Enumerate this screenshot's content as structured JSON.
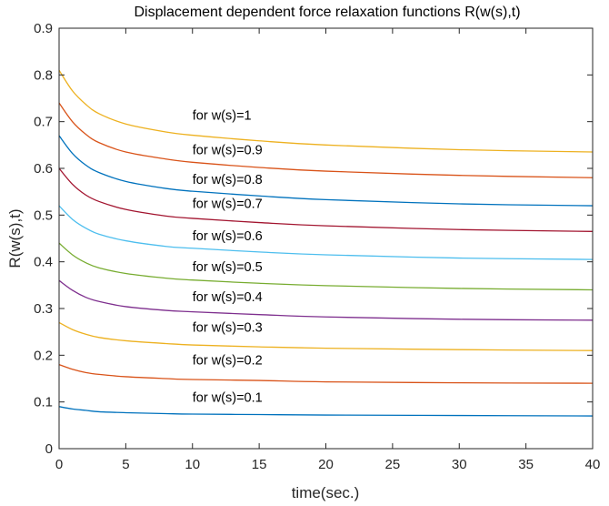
{
  "chart_data": {
    "type": "line",
    "title": "Displacement dependent force relaxation functions R(w(s),t)",
    "xlabel": "time(sec.)",
    "ylabel": "R(w(s),t)",
    "xlim": [
      0,
      40
    ],
    "ylim": [
      0,
      0.9
    ],
    "xticks": [
      "0",
      "5",
      "10",
      "15",
      "20",
      "25",
      "30",
      "35",
      "40"
    ],
    "yticks": [
      "0",
      "0.1",
      "0.2",
      "0.3",
      "0.4",
      "0.5",
      "0.6",
      "0.7",
      "0.8",
      "0.9"
    ],
    "grid": false,
    "x": [
      0,
      1,
      2,
      3,
      5,
      8,
      10,
      15,
      20,
      30,
      40
    ],
    "series": [
      {
        "name": "for w(s)=1",
        "color": "#EDB120",
        "label_at": [
          10,
          0.704
        ],
        "values": [
          0.81,
          0.766,
          0.737,
          0.717,
          0.695,
          0.678,
          0.671,
          0.659,
          0.65,
          0.64,
          0.635
        ]
      },
      {
        "name": "for w(s)=0.9",
        "color": "#D95319",
        "label_at": [
          10,
          0.63
        ],
        "values": [
          0.74,
          0.7,
          0.673,
          0.655,
          0.635,
          0.62,
          0.613,
          0.602,
          0.594,
          0.585,
          0.58
        ]
      },
      {
        "name": "for w(s)=0.8",
        "color": "#0072BD",
        "label_at": [
          10,
          0.567
        ],
        "values": [
          0.67,
          0.632,
          0.607,
          0.591,
          0.572,
          0.557,
          0.551,
          0.541,
          0.533,
          0.524,
          0.52
        ]
      },
      {
        "name": "for w(s)=0.7",
        "color": "#A2142F",
        "label_at": [
          10,
          0.515
        ],
        "values": [
          0.6,
          0.566,
          0.543,
          0.529,
          0.512,
          0.498,
          0.493,
          0.484,
          0.477,
          0.469,
          0.465
        ]
      },
      {
        "name": "for w(s)=0.6",
        "color": "#4DBEEE",
        "label_at": [
          10,
          0.446
        ],
        "values": [
          0.52,
          0.491,
          0.472,
          0.459,
          0.445,
          0.433,
          0.429,
          0.421,
          0.415,
          0.408,
          0.405
        ]
      },
      {
        "name": "for w(s)=0.5",
        "color": "#77AC30",
        "label_at": [
          10,
          0.38
        ],
        "values": [
          0.44,
          0.415,
          0.398,
          0.387,
          0.375,
          0.365,
          0.361,
          0.354,
          0.349,
          0.343,
          0.34
        ]
      },
      {
        "name": "for w(s)=0.4",
        "color": "#7E2F8E",
        "label_at": [
          10,
          0.316
        ],
        "values": [
          0.36,
          0.339,
          0.324,
          0.315,
          0.304,
          0.296,
          0.293,
          0.287,
          0.282,
          0.277,
          0.275
        ]
      },
      {
        "name": "for w(s)=0.3",
        "color": "#EDB120",
        "label_at": [
          10,
          0.25
        ],
        "values": [
          0.27,
          0.255,
          0.245,
          0.238,
          0.231,
          0.225,
          0.222,
          0.218,
          0.215,
          0.212,
          0.21
        ]
      },
      {
        "name": "for w(s)=0.2",
        "color": "#D95319",
        "label_at": [
          10,
          0.18
        ],
        "values": [
          0.18,
          0.17,
          0.163,
          0.159,
          0.154,
          0.15,
          0.148,
          0.146,
          0.143,
          0.141,
          0.14
        ]
      },
      {
        "name": "for w(s)=0.1",
        "color": "#0072BD",
        "label_at": [
          10,
          0.1
        ],
        "values": [
          0.09,
          0.085,
          0.082,
          0.079,
          0.077,
          0.075,
          0.074,
          0.073,
          0.072,
          0.071,
          0.07
        ]
      }
    ]
  }
}
